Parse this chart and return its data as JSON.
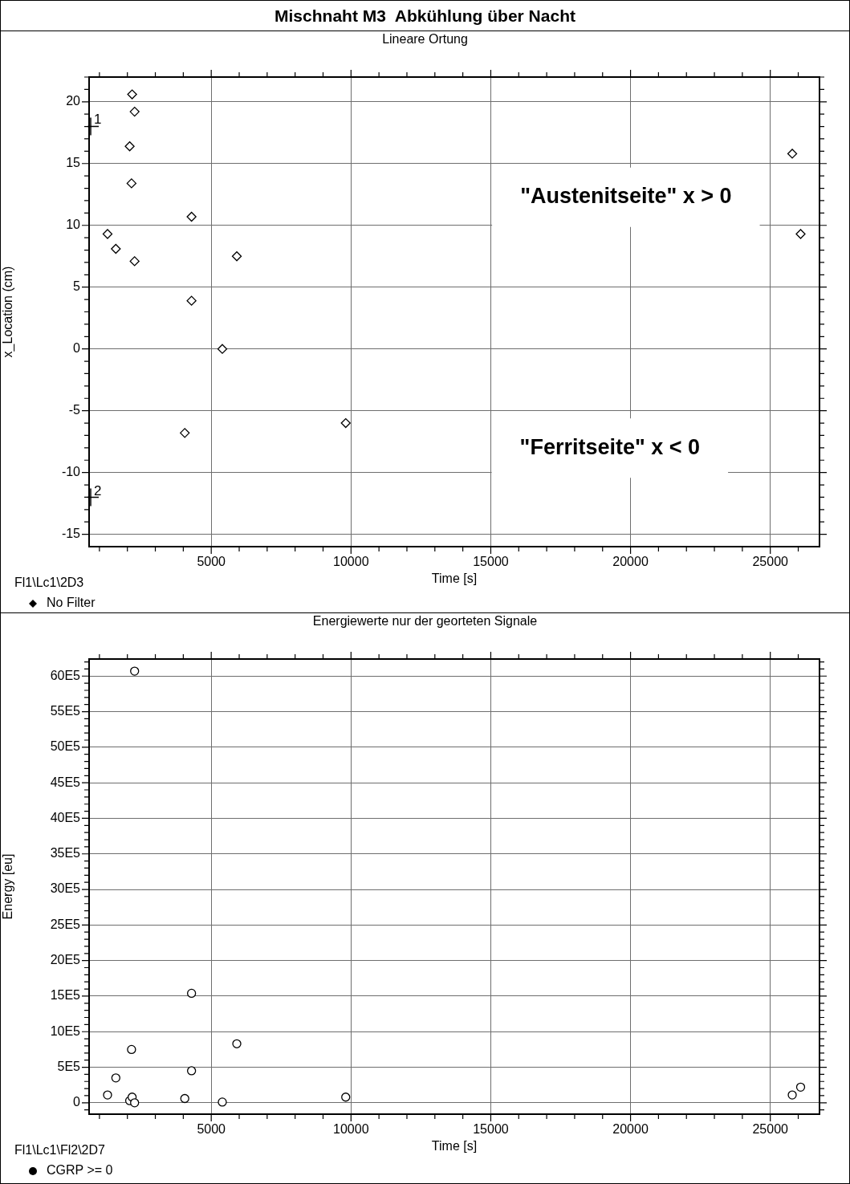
{
  "chart_data": [
    {
      "type": "scatter",
      "title": "Mischnaht M3  Abkühlung über Nacht",
      "subtitle": "Lineare Ortung",
      "xlabel": "Time [s]",
      "ylabel": "x_Location (cm)",
      "x": [
        1290,
        1587,
        2082,
        2148,
        2170,
        2258,
        2258,
        4053,
        4295,
        4295,
        5396,
        5914,
        9811,
        25785,
        26085
      ],
      "series": [
        {
          "name": "No Filter",
          "color": "#000000",
          "values": [
            9.3,
            8.1,
            16.4,
            13.4,
            20.6,
            19.2,
            7.1,
            -6.8,
            10.7,
            3.9,
            0,
            7.5,
            -6.0,
            15.8,
            9.3
          ]
        }
      ],
      "marker": "diamond",
      "grid": true,
      "legend": "bottom left",
      "xlim": [
        630,
        26760
      ],
      "xticks": [
        {
          "value": 1000,
          "label": null
        },
        {
          "value": 2000,
          "label": null
        },
        {
          "value": 3000,
          "label": null
        },
        {
          "value": 4000,
          "label": null
        },
        5000,
        {
          "value": 6000,
          "label": null
        },
        {
          "value": 7000,
          "label": null
        },
        {
          "value": 8000,
          "label": null
        },
        {
          "value": 9000,
          "label": null
        },
        10000,
        {
          "value": 11000,
          "label": null
        },
        {
          "value": 12000,
          "label": null
        },
        {
          "value": 13000,
          "label": null
        },
        {
          "value": 14000,
          "label": null
        },
        15000,
        {
          "value": 16000,
          "label": null
        },
        {
          "value": 17000,
          "label": null
        },
        {
          "value": 18000,
          "label": null
        },
        {
          "value": 19000,
          "label": null
        },
        20000,
        {
          "value": 21000,
          "label": null
        },
        {
          "value": 22000,
          "label": null
        },
        {
          "value": 23000,
          "label": null
        },
        {
          "value": 24000,
          "label": null
        },
        25000,
        {
          "value": 26000,
          "label": null
        }
      ],
      "ylim": [
        -16,
        22
      ],
      "yticks": [
        {
          "value": -14,
          "label": null
        },
        {
          "value": -13,
          "label": null
        },
        {
          "value": -12,
          "label": null
        },
        {
          "value": -11,
          "label": null
        },
        -15,
        -10,
        {
          "value": -9,
          "label": null
        },
        {
          "value": -8,
          "label": null
        },
        {
          "value": -7,
          "label": null
        },
        {
          "value": -6,
          "label": null
        },
        -5,
        {
          "value": -4,
          "label": null
        },
        {
          "value": -3,
          "label": null
        },
        {
          "value": -2,
          "label": null
        },
        {
          "value": -1,
          "label": null
        },
        0,
        {
          "value": 1,
          "label": null
        },
        {
          "value": 2,
          "label": null
        },
        {
          "value": 3,
          "label": null
        },
        {
          "value": 4,
          "label": null
        },
        5,
        {
          "value": 6,
          "label": null
        },
        {
          "value": 7,
          "label": null
        },
        {
          "value": 8,
          "label": null
        },
        {
          "value": 9,
          "label": null
        },
        10,
        {
          "value": 11,
          "label": null
        },
        {
          "value": 12,
          "label": null
        },
        {
          "value": 13,
          "label": null
        },
        {
          "value": 14,
          "label": null
        },
        15,
        {
          "value": 16,
          "label": null
        },
        {
          "value": 17,
          "label": null
        },
        {
          "value": 18,
          "label": null
        },
        {
          "value": 19,
          "label": null
        },
        20,
        {
          "value": 21,
          "label": null
        },
        {
          "value": 22,
          "label": null
        }
      ],
      "annotations": [
        "\"Austenitseite\" x > 0",
        "\"Ferritseite\" x < 0",
        "1",
        "2",
        "Fl1\\Lc1\\2D3"
      ]
    },
    {
      "type": "scatter",
      "title": "Energiewerte nur der georteten Signale",
      "xlabel": "Time [s]",
      "ylabel": "Energy [eu]",
      "x": [
        1290,
        1587,
        2082,
        2148,
        2170,
        2258,
        2258,
        4053,
        4295,
        4295,
        5396,
        5914,
        9811,
        25785,
        26085
      ],
      "series": [
        {
          "name": "CGRP >= 0",
          "color": "#000000",
          "values": [
            110000,
            350000,
            30000,
            750000,
            80000,
            6070000,
            0,
            60000,
            1540000,
            450000,
            10000,
            830000,
            80000,
            110000,
            220000
          ]
        }
      ],
      "marker": "circle",
      "grid": true,
      "legend": "bottom left",
      "xlim": [
        630,
        26760
      ],
      "xticks": [
        {
          "value": 1000,
          "label": null
        },
        {
          "value": 2000,
          "label": null
        },
        {
          "value": 3000,
          "label": null
        },
        {
          "value": 4000,
          "label": null
        },
        5000,
        {
          "value": 6000,
          "label": null
        },
        {
          "value": 7000,
          "label": null
        },
        {
          "value": 8000,
          "label": null
        },
        {
          "value": 9000,
          "label": null
        },
        10000,
        {
          "value": 11000,
          "label": null
        },
        {
          "value": 12000,
          "label": null
        },
        {
          "value": 13000,
          "label": null
        },
        {
          "value": 14000,
          "label": null
        },
        15000,
        {
          "value": 16000,
          "label": null
        },
        {
          "value": 17000,
          "label": null
        },
        {
          "value": 18000,
          "label": null
        },
        {
          "value": 19000,
          "label": null
        },
        20000,
        {
          "value": 21000,
          "label": null
        },
        {
          "value": 22000,
          "label": null
        },
        {
          "value": 23000,
          "label": null
        },
        {
          "value": 24000,
          "label": null
        },
        25000,
        {
          "value": 26000,
          "label": null
        }
      ],
      "ylim": [
        -160000,
        6240000
      ],
      "yticks": [
        {
          "value": -100000,
          "label": null
        },
        {
          "value": 0,
          "label": "0"
        },
        {
          "value": 100000,
          "label": null
        },
        {
          "value": 200000,
          "label": null
        },
        {
          "value": 300000,
          "label": null
        },
        {
          "value": 400000,
          "label": null
        },
        {
          "value": 500000,
          "label": "5E5"
        },
        {
          "value": 600000,
          "label": null
        },
        {
          "value": 700000,
          "label": null
        },
        {
          "value": 800000,
          "label": null
        },
        {
          "value": 900000,
          "label": null
        },
        {
          "value": 1000000,
          "label": "10E5"
        },
        {
          "value": 1100000,
          "label": null
        },
        {
          "value": 1200000,
          "label": null
        },
        {
          "value": 1300000,
          "label": null
        },
        {
          "value": 1400000,
          "label": null
        },
        {
          "value": 1500000,
          "label": "15E5"
        },
        {
          "value": 1600000,
          "label": null
        },
        {
          "value": 1700000,
          "label": null
        },
        {
          "value": 1800000,
          "label": null
        },
        {
          "value": 1900000,
          "label": null
        },
        {
          "value": 2000000,
          "label": "20E5"
        },
        {
          "value": 2100000,
          "label": null
        },
        {
          "value": 2200000,
          "label": null
        },
        {
          "value": 2300000,
          "label": null
        },
        {
          "value": 2400000,
          "label": null
        },
        {
          "value": 2500000,
          "label": "25E5"
        },
        {
          "value": 2600000,
          "label": null
        },
        {
          "value": 2700000,
          "label": null
        },
        {
          "value": 2800000,
          "label": null
        },
        {
          "value": 2900000,
          "label": null
        },
        {
          "value": 3000000,
          "label": "30E5"
        },
        {
          "value": 3100000,
          "label": null
        },
        {
          "value": 3200000,
          "label": null
        },
        {
          "value": 3300000,
          "label": null
        },
        {
          "value": 3400000,
          "label": null
        },
        {
          "value": 3500000,
          "label": "35E5"
        },
        {
          "value": 3600000,
          "label": null
        },
        {
          "value": 3700000,
          "label": null
        },
        {
          "value": 3800000,
          "label": null
        },
        {
          "value": 3900000,
          "label": null
        },
        {
          "value": 4000000,
          "label": "40E5"
        },
        {
          "value": 4100000,
          "label": null
        },
        {
          "value": 4200000,
          "label": null
        },
        {
          "value": 4300000,
          "label": null
        },
        {
          "value": 4400000,
          "label": null
        },
        {
          "value": 4500000,
          "label": "45E5"
        },
        {
          "value": 4600000,
          "label": null
        },
        {
          "value": 4700000,
          "label": null
        },
        {
          "value": 4800000,
          "label": null
        },
        {
          "value": 4900000,
          "label": null
        },
        {
          "value": 5000000,
          "label": "50E5"
        },
        {
          "value": 5100000,
          "label": null
        },
        {
          "value": 5200000,
          "label": null
        },
        {
          "value": 5300000,
          "label": null
        },
        {
          "value": 5400000,
          "label": null
        },
        {
          "value": 5500000,
          "label": "55E5"
        },
        {
          "value": 5600000,
          "label": null
        },
        {
          "value": 5700000,
          "label": null
        },
        {
          "value": 5800000,
          "label": null
        },
        {
          "value": 5900000,
          "label": null
        },
        {
          "value": 6000000,
          "label": "60E5"
        },
        {
          "value": 6100000,
          "label": null
        },
        {
          "value": 6200000,
          "label": null
        }
      ],
      "annotations": [
        "Fl1\\Lc1\\Fl2\\2D7"
      ]
    }
  ]
}
